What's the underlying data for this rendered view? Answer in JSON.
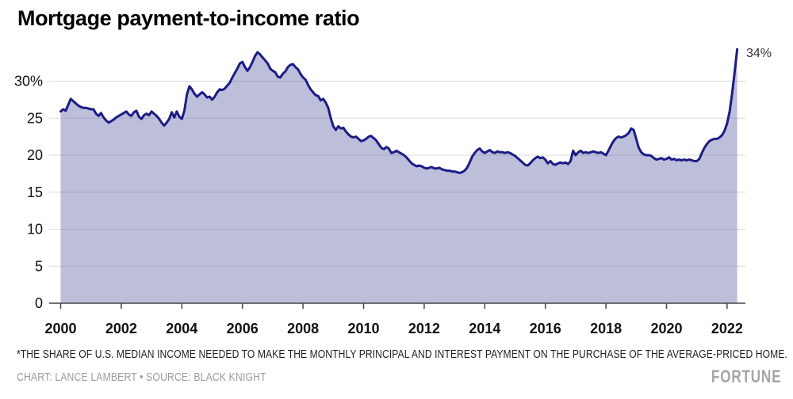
{
  "header": {
    "title": "Mortgage payment-to-income ratio"
  },
  "annotation": {
    "end_label": "34%"
  },
  "footer": {
    "footnote": "*THE SHARE OF U.S. MEDIAN INCOME NEEDED TO MAKE THE MONTHLY PRINCIPAL AND INTEREST PAYMENT ON THE PURCHASE OF THE AVERAGE-PRICED HOME.",
    "credit": "CHART: LANCE LAMBERT • SOURCE: BLACK KNIGHT",
    "brand": "FORTUNE"
  },
  "chart_data": {
    "type": "area",
    "title": "Mortgage payment-to-income ratio",
    "xlabel": "",
    "ylabel": "",
    "x_start_year": 2000,
    "x_step_months": 1,
    "xlim": [
      2000,
      2022.5
    ],
    "ylim": [
      0,
      35
    ],
    "grid": "horizontal",
    "x_ticks": [
      2000,
      2002,
      2004,
      2006,
      2008,
      2010,
      2012,
      2014,
      2016,
      2018,
      2020,
      2022
    ],
    "y_ticks": [
      {
        "v": 0,
        "label": "0"
      },
      {
        "v": 5,
        "label": "5"
      },
      {
        "v": 10,
        "label": "10"
      },
      {
        "v": 15,
        "label": "15"
      },
      {
        "v": 20,
        "label": "20"
      },
      {
        "v": 25,
        "label": "25"
      },
      {
        "v": 30,
        "label": "30%"
      }
    ],
    "end_label": "34%",
    "colors": {
      "line": "#1c1c85",
      "fill": "rgba(109,111,173,0.45)",
      "grid": "#d8d8d8",
      "axis": "#444444",
      "tick_label": "#111111"
    },
    "values_monthly": [
      25.9,
      26.2,
      26.0,
      26.8,
      27.6,
      27.3,
      27.0,
      26.7,
      26.5,
      26.4,
      26.4,
      26.3,
      26.2,
      26.2,
      25.6,
      25.3,
      25.7,
      25.1,
      24.7,
      24.4,
      24.6,
      24.8,
      25.1,
      25.3,
      25.5,
      25.7,
      25.9,
      25.5,
      25.3,
      25.8,
      26.0,
      25.2,
      24.9,
      25.4,
      25.6,
      25.4,
      25.9,
      25.6,
      25.3,
      24.9,
      24.4,
      24.0,
      24.4,
      24.9,
      25.8,
      25.1,
      25.9,
      25.2,
      24.9,
      26.0,
      28.2,
      29.3,
      28.9,
      28.3,
      27.9,
      28.2,
      28.5,
      28.2,
      27.8,
      27.9,
      27.5,
      27.9,
      28.5,
      28.9,
      28.8,
      29.0,
      29.4,
      29.8,
      30.5,
      31.1,
      31.7,
      32.4,
      32.6,
      31.9,
      31.4,
      31.9,
      32.6,
      33.4,
      33.9,
      33.6,
      33.2,
      32.8,
      32.4,
      31.7,
      31.4,
      31.2,
      30.6,
      30.5,
      31.0,
      31.3,
      31.9,
      32.2,
      32.3,
      31.9,
      31.6,
      31.0,
      30.5,
      30.2,
      29.5,
      28.9,
      28.5,
      28.1,
      28.0,
      27.4,
      27.6,
      27.1,
      26.4,
      25.0,
      23.9,
      23.4,
      23.9,
      23.6,
      23.7,
      23.2,
      22.8,
      22.5,
      22.4,
      22.5,
      22.2,
      21.9,
      22.0,
      22.2,
      22.5,
      22.6,
      22.3,
      22.0,
      21.5,
      21.0,
      20.8,
      21.1,
      20.9,
      20.3,
      20.4,
      20.6,
      20.4,
      20.2,
      20.0,
      19.7,
      19.3,
      18.9,
      18.7,
      18.5,
      18.6,
      18.5,
      18.3,
      18.2,
      18.3,
      18.4,
      18.2,
      18.2,
      18.3,
      18.1,
      18.0,
      17.9,
      17.9,
      17.8,
      17.8,
      17.7,
      17.6,
      17.7,
      17.9,
      18.3,
      19.0,
      19.8,
      20.3,
      20.7,
      20.9,
      20.5,
      20.3,
      20.5,
      20.7,
      20.4,
      20.3,
      20.5,
      20.4,
      20.4,
      20.3,
      20.4,
      20.3,
      20.1,
      19.9,
      19.6,
      19.3,
      19.0,
      18.7,
      18.6,
      18.9,
      19.3,
      19.6,
      19.8,
      19.6,
      19.7,
      19.4,
      18.9,
      19.2,
      18.8,
      18.7,
      18.9,
      19.0,
      18.9,
      19.0,
      18.8,
      19.2,
      20.6,
      20.0,
      20.4,
      20.6,
      20.3,
      20.4,
      20.3,
      20.4,
      20.5,
      20.4,
      20.3,
      20.4,
      20.2,
      20.0,
      20.6,
      21.3,
      21.9,
      22.3,
      22.5,
      22.4,
      22.5,
      22.7,
      23.0,
      23.6,
      23.4,
      22.2,
      21.0,
      20.4,
      20.1,
      20.0,
      20.0,
      19.9,
      19.6,
      19.4,
      19.5,
      19.6,
      19.4,
      19.5,
      19.7,
      19.4,
      19.5,
      19.3,
      19.4,
      19.3,
      19.4,
      19.3,
      19.4,
      19.3,
      19.2,
      19.2,
      19.5,
      20.3,
      21.0,
      21.5,
      21.9,
      22.1,
      22.2,
      22.2,
      22.4,
      22.7,
      23.3,
      24.3,
      25.9,
      28.4,
      31.3,
      34.3
    ]
  }
}
